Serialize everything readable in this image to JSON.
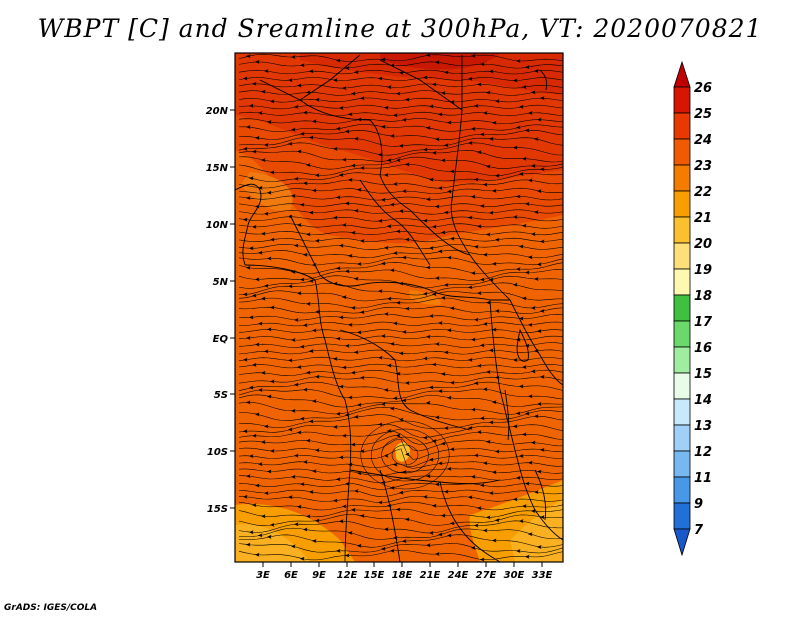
{
  "title": "WBPT [C] and Sreamline at 300hPa, VT: 2020070821",
  "credit": "GrADS: IGES/COLA",
  "map": {
    "variable": "WBPT",
    "units": "C",
    "level": "300hPa",
    "valid_time": "2020070821",
    "lat_ticks": [
      "20N",
      "15N",
      "10N",
      "5N",
      "EQ",
      "5S",
      "10S",
      "15S"
    ],
    "lon_ticks": [
      "3E",
      "6E",
      "9E",
      "12E",
      "15E",
      "18E",
      "21E",
      "24E",
      "27E",
      "30E",
      "33E"
    ],
    "lat_values": [
      20,
      15,
      10,
      5,
      0,
      -5,
      -10,
      -15
    ],
    "lon_values": [
      3,
      6,
      9,
      12,
      15,
      18,
      21,
      24,
      27,
      30,
      33
    ],
    "lon_range": [
      0,
      35.5
    ],
    "lat_range": [
      -20,
      24.5
    ]
  },
  "colorbar": {
    "labels": [
      "26",
      "25",
      "24",
      "23",
      "22",
      "21",
      "20",
      "19",
      "18",
      "17",
      "16",
      "15",
      "14",
      "13",
      "12",
      "11",
      "9",
      "7"
    ],
    "colors": [
      "#c00000",
      "#d81500",
      "#e83a00",
      "#f05a00",
      "#f47c00",
      "#f89e00",
      "#fac030",
      "#fde07a",
      "#fef8b0",
      "#40c040",
      "#6ad86a",
      "#a0eca0",
      "#e8fce8",
      "#c8e8fc",
      "#a0d0f8",
      "#78b8f0",
      "#4898e8",
      "#2070d8",
      "#1858c8"
    ]
  }
}
